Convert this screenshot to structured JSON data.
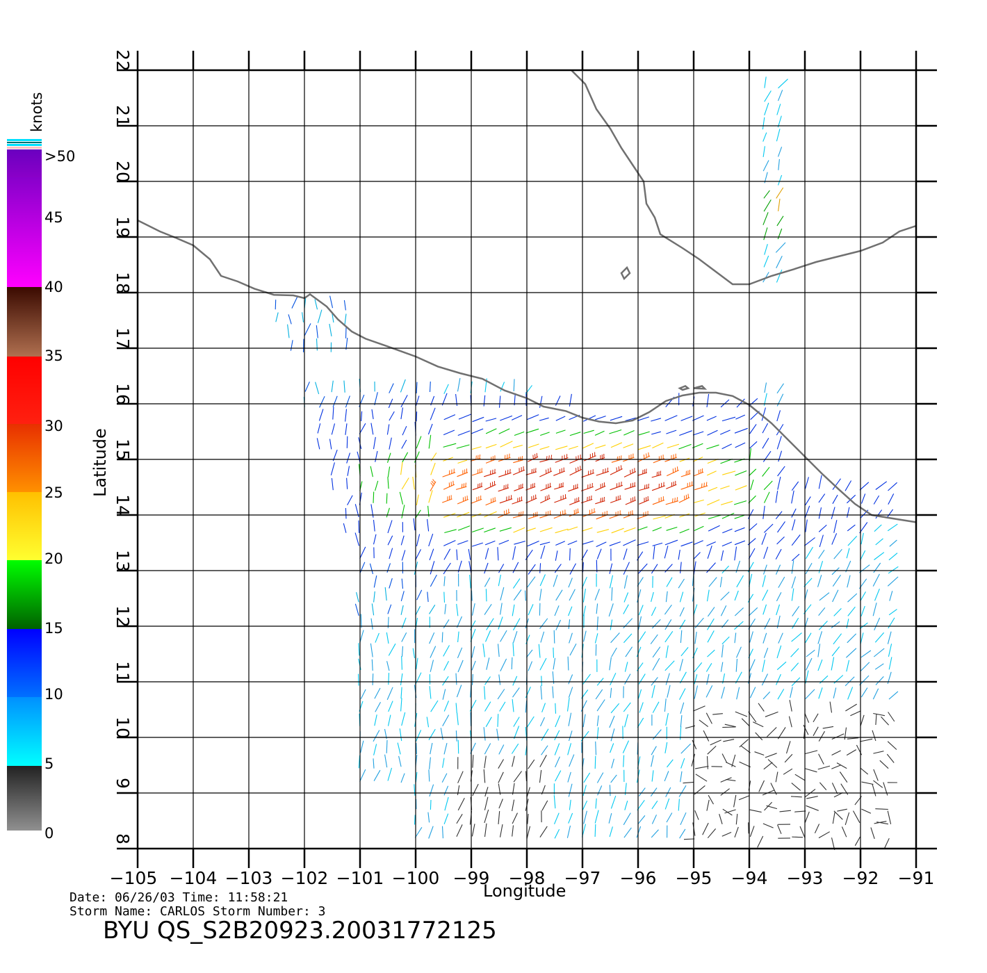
{
  "map": {
    "lon_ticks": [
      "−105",
      "−104",
      "−103",
      "−102",
      "−101",
      "−100",
      "−99",
      "−98",
      "−97",
      "−96",
      "−95",
      "−94",
      "−93",
      "−92",
      "−91"
    ],
    "lat_ticks": [
      "8",
      "9",
      "10",
      "11",
      "12",
      "13",
      "14",
      "15",
      "16",
      "17",
      "18",
      "19",
      "20",
      "21",
      "22"
    ],
    "lon_range": [
      -105,
      -91
    ],
    "lat_range": [
      8,
      22
    ],
    "xlabel": "Longitude",
    "ylabel": "Latitude",
    "grid": true,
    "coastline_color": "#707070"
  },
  "colorbar": {
    "title": "knots",
    "labels": [
      ">50",
      "45",
      "40",
      "35",
      "30",
      "25",
      "20",
      "15",
      "10",
      "5",
      "0"
    ],
    "colors": {
      "over50": "#7000c0",
      "40_50": "#ff00ff",
      "35_40": "#5a1a0a",
      "30_35": "#ff0000",
      "25_30": "#ff7000",
      "20_25": "#ffe000",
      "15_20": "#00ff00",
      "10_15": "#0000ff",
      "5_10": "#00e0ff",
      "0_5": "#333333"
    }
  },
  "info": {
    "date_line": "Date: 06/26/03   Time: 11:58:21",
    "storm_line": "Storm Name: CARLOS   Storm Number: 3",
    "product": "BYU QS_S2B20923.20031772125"
  }
}
